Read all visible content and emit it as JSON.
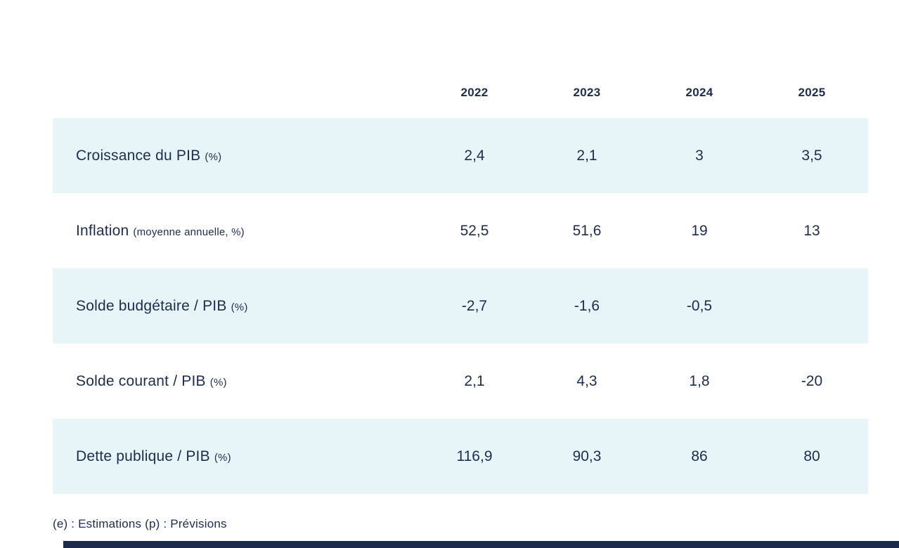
{
  "colors": {
    "row_alt_background": "#e8f5f8",
    "text": "#1d2c4f",
    "bottom_bar": "#1d2a4e"
  },
  "table": {
    "years": [
      "2022",
      "2023",
      "2024",
      "2025"
    ],
    "rows": [
      {
        "label": "Croissance du PIB",
        "suffix": "(%)",
        "values": [
          "2,4",
          "2,1",
          "3",
          "3,5"
        ]
      },
      {
        "label": "Inflation",
        "suffix": "(moyenne annuelle, %)",
        "values": [
          "52,5",
          "51,6",
          "19",
          "13"
        ]
      },
      {
        "label": "Solde budgétaire / PIB",
        "suffix": "(%)",
        "values": [
          "-2,7",
          "-1,6",
          "-0,5",
          ""
        ]
      },
      {
        "label": "Solde courant / PIB",
        "suffix": "(%)",
        "values": [
          "2,1",
          "4,3",
          "1,8",
          "-20"
        ]
      },
      {
        "label": "Dette publique / PIB",
        "suffix": "(%)",
        "values": [
          "116,9",
          "90,3",
          "86",
          "80"
        ]
      }
    ]
  },
  "footnote": "(e) : Estimations (p) : Prévisions",
  "chart_data": {
    "type": "table",
    "title": "",
    "categories": [
      "2022",
      "2023",
      "2024",
      "2025"
    ],
    "series": [
      {
        "name": "Croissance du PIB (%)",
        "values": [
          2.4,
          2.1,
          3,
          3.5
        ]
      },
      {
        "name": "Inflation (moyenne annuelle, %)",
        "values": [
          52.5,
          51.6,
          19,
          13
        ]
      },
      {
        "name": "Solde budgétaire / PIB (%)",
        "values": [
          -2.7,
          -1.6,
          -0.5,
          null
        ]
      },
      {
        "name": "Solde courant / PIB (%)",
        "values": [
          2.1,
          4.3,
          1.8,
          -20
        ]
      },
      {
        "name": "Dette publique / PIB (%)",
        "values": [
          116.9,
          90.3,
          86,
          80
        ]
      }
    ],
    "notes": "(e) : Estimations (p) : Prévisions"
  }
}
